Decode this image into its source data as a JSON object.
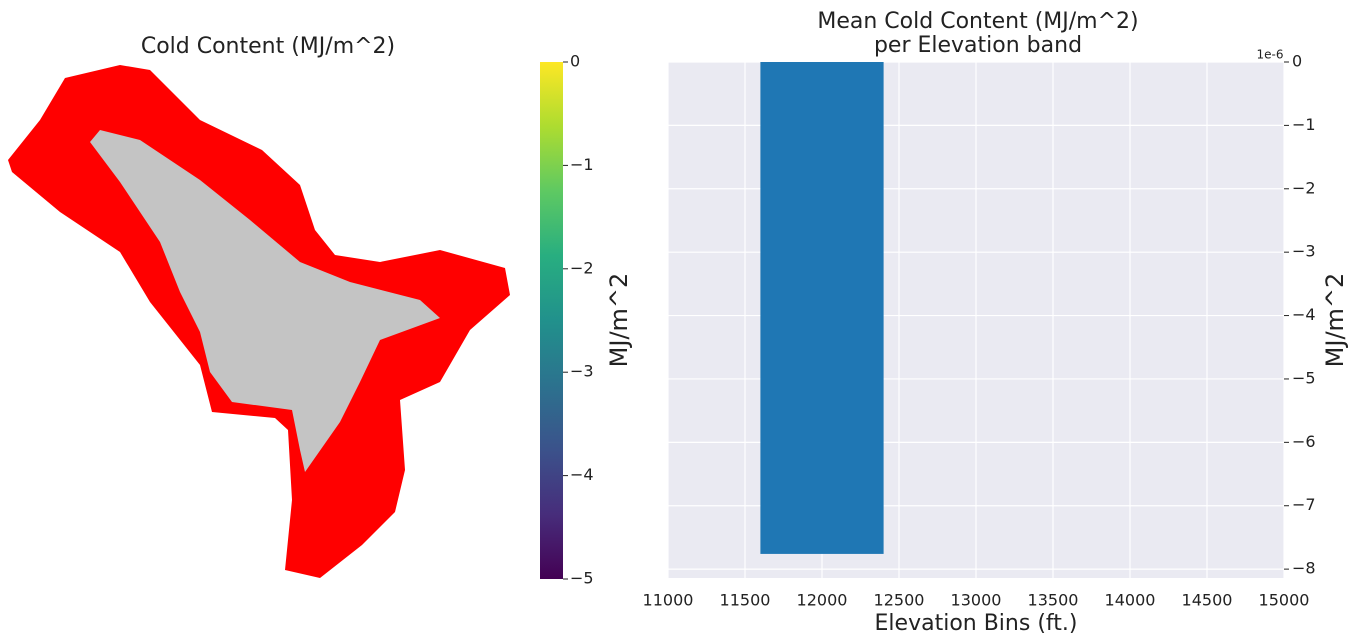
{
  "chart_data": [
    {
      "type": "map",
      "title": "Cold Content (MJ/m^2)",
      "colorbar": {
        "label": "MJ/m^2",
        "colormap": "viridis",
        "lim": [
          -5,
          0
        ],
        "ticks": [
          0,
          {
            "value": -1,
            "label": "−1"
          },
          {
            "value": -2,
            "label": "−2"
          },
          {
            "value": -3,
            "label": "−3"
          },
          {
            "value": -4,
            "label": "−4"
          },
          {
            "value": -5,
            "label": "−5"
          }
        ]
      }
    },
    {
      "type": "histogram",
      "title": "Mean Cold Content (MJ/m^2)",
      "subtitle": "per Elevation band",
      "xlabel": "Elevation Bins (ft.)",
      "ylabel": "MJ/m^2",
      "offset_label": "1e-6",
      "bins": [
        11600,
        12400
      ],
      "values": [
        -7.76e-06
      ],
      "color": "#1f77b4",
      "xlim": [
        11000,
        15000
      ],
      "xticks": [
        11000,
        11500,
        12000,
        12500,
        13000,
        13500,
        14000,
        14500,
        15000
      ],
      "ylim": [
        -8.14e-06,
        0
      ],
      "yticks": [
        0,
        {
          "value": -1e-06,
          "label": "−1"
        },
        {
          "value": -2e-06,
          "label": "−2"
        },
        {
          "value": -3e-06,
          "label": "−3"
        },
        {
          "value": -4e-06,
          "label": "−4"
        },
        {
          "value": -5e-06,
          "label": "−5"
        },
        {
          "value": -6e-06,
          "label": "−6"
        },
        {
          "value": -7e-06,
          "label": "−7"
        },
        {
          "value": -8e-06,
          "label": "−8"
        }
      ],
      "grid": true,
      "yaxis_side": "right"
    }
  ]
}
